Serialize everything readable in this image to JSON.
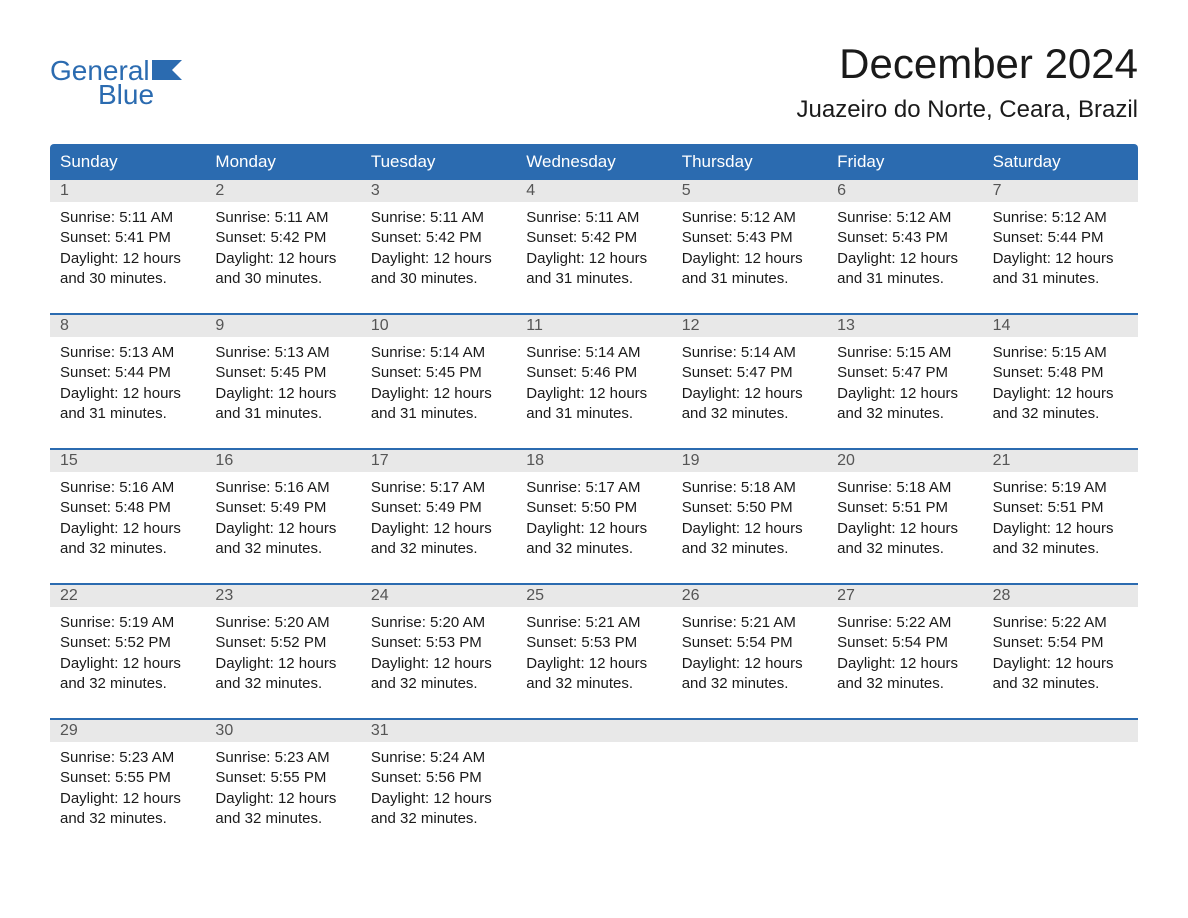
{
  "logo": {
    "text_top": "General",
    "text_bottom": "Blue",
    "color": "#2b6bb0",
    "flag_color": "#2b6bb0"
  },
  "header": {
    "title": "December 2024",
    "subtitle": "Juazeiro do Norte, Ceara, Brazil"
  },
  "colors": {
    "header_bg": "#2b6bb0",
    "header_text": "#ffffff",
    "day_number_bg": "#e8e8e8",
    "day_number_text": "#555555",
    "body_text": "#1a1a1a",
    "row_border": "#2b6bb0",
    "page_bg": "#ffffff"
  },
  "weekdays": [
    "Sunday",
    "Monday",
    "Tuesday",
    "Wednesday",
    "Thursday",
    "Friday",
    "Saturday"
  ],
  "weeks": [
    [
      {
        "day": "1",
        "sunrise": "Sunrise: 5:11 AM",
        "sunset": "Sunset: 5:41 PM",
        "daylight1": "Daylight: 12 hours",
        "daylight2": "and 30 minutes."
      },
      {
        "day": "2",
        "sunrise": "Sunrise: 5:11 AM",
        "sunset": "Sunset: 5:42 PM",
        "daylight1": "Daylight: 12 hours",
        "daylight2": "and 30 minutes."
      },
      {
        "day": "3",
        "sunrise": "Sunrise: 5:11 AM",
        "sunset": "Sunset: 5:42 PM",
        "daylight1": "Daylight: 12 hours",
        "daylight2": "and 30 minutes."
      },
      {
        "day": "4",
        "sunrise": "Sunrise: 5:11 AM",
        "sunset": "Sunset: 5:42 PM",
        "daylight1": "Daylight: 12 hours",
        "daylight2": "and 31 minutes."
      },
      {
        "day": "5",
        "sunrise": "Sunrise: 5:12 AM",
        "sunset": "Sunset: 5:43 PM",
        "daylight1": "Daylight: 12 hours",
        "daylight2": "and 31 minutes."
      },
      {
        "day": "6",
        "sunrise": "Sunrise: 5:12 AM",
        "sunset": "Sunset: 5:43 PM",
        "daylight1": "Daylight: 12 hours",
        "daylight2": "and 31 minutes."
      },
      {
        "day": "7",
        "sunrise": "Sunrise: 5:12 AM",
        "sunset": "Sunset: 5:44 PM",
        "daylight1": "Daylight: 12 hours",
        "daylight2": "and 31 minutes."
      }
    ],
    [
      {
        "day": "8",
        "sunrise": "Sunrise: 5:13 AM",
        "sunset": "Sunset: 5:44 PM",
        "daylight1": "Daylight: 12 hours",
        "daylight2": "and 31 minutes."
      },
      {
        "day": "9",
        "sunrise": "Sunrise: 5:13 AM",
        "sunset": "Sunset: 5:45 PM",
        "daylight1": "Daylight: 12 hours",
        "daylight2": "and 31 minutes."
      },
      {
        "day": "10",
        "sunrise": "Sunrise: 5:14 AM",
        "sunset": "Sunset: 5:45 PM",
        "daylight1": "Daylight: 12 hours",
        "daylight2": "and 31 minutes."
      },
      {
        "day": "11",
        "sunrise": "Sunrise: 5:14 AM",
        "sunset": "Sunset: 5:46 PM",
        "daylight1": "Daylight: 12 hours",
        "daylight2": "and 31 minutes."
      },
      {
        "day": "12",
        "sunrise": "Sunrise: 5:14 AM",
        "sunset": "Sunset: 5:47 PM",
        "daylight1": "Daylight: 12 hours",
        "daylight2": "and 32 minutes."
      },
      {
        "day": "13",
        "sunrise": "Sunrise: 5:15 AM",
        "sunset": "Sunset: 5:47 PM",
        "daylight1": "Daylight: 12 hours",
        "daylight2": "and 32 minutes."
      },
      {
        "day": "14",
        "sunrise": "Sunrise: 5:15 AM",
        "sunset": "Sunset: 5:48 PM",
        "daylight1": "Daylight: 12 hours",
        "daylight2": "and 32 minutes."
      }
    ],
    [
      {
        "day": "15",
        "sunrise": "Sunrise: 5:16 AM",
        "sunset": "Sunset: 5:48 PM",
        "daylight1": "Daylight: 12 hours",
        "daylight2": "and 32 minutes."
      },
      {
        "day": "16",
        "sunrise": "Sunrise: 5:16 AM",
        "sunset": "Sunset: 5:49 PM",
        "daylight1": "Daylight: 12 hours",
        "daylight2": "and 32 minutes."
      },
      {
        "day": "17",
        "sunrise": "Sunrise: 5:17 AM",
        "sunset": "Sunset: 5:49 PM",
        "daylight1": "Daylight: 12 hours",
        "daylight2": "and 32 minutes."
      },
      {
        "day": "18",
        "sunrise": "Sunrise: 5:17 AM",
        "sunset": "Sunset: 5:50 PM",
        "daylight1": "Daylight: 12 hours",
        "daylight2": "and 32 minutes."
      },
      {
        "day": "19",
        "sunrise": "Sunrise: 5:18 AM",
        "sunset": "Sunset: 5:50 PM",
        "daylight1": "Daylight: 12 hours",
        "daylight2": "and 32 minutes."
      },
      {
        "day": "20",
        "sunrise": "Sunrise: 5:18 AM",
        "sunset": "Sunset: 5:51 PM",
        "daylight1": "Daylight: 12 hours",
        "daylight2": "and 32 minutes."
      },
      {
        "day": "21",
        "sunrise": "Sunrise: 5:19 AM",
        "sunset": "Sunset: 5:51 PM",
        "daylight1": "Daylight: 12 hours",
        "daylight2": "and 32 minutes."
      }
    ],
    [
      {
        "day": "22",
        "sunrise": "Sunrise: 5:19 AM",
        "sunset": "Sunset: 5:52 PM",
        "daylight1": "Daylight: 12 hours",
        "daylight2": "and 32 minutes."
      },
      {
        "day": "23",
        "sunrise": "Sunrise: 5:20 AM",
        "sunset": "Sunset: 5:52 PM",
        "daylight1": "Daylight: 12 hours",
        "daylight2": "and 32 minutes."
      },
      {
        "day": "24",
        "sunrise": "Sunrise: 5:20 AM",
        "sunset": "Sunset: 5:53 PM",
        "daylight1": "Daylight: 12 hours",
        "daylight2": "and 32 minutes."
      },
      {
        "day": "25",
        "sunrise": "Sunrise: 5:21 AM",
        "sunset": "Sunset: 5:53 PM",
        "daylight1": "Daylight: 12 hours",
        "daylight2": "and 32 minutes."
      },
      {
        "day": "26",
        "sunrise": "Sunrise: 5:21 AM",
        "sunset": "Sunset: 5:54 PM",
        "daylight1": "Daylight: 12 hours",
        "daylight2": "and 32 minutes."
      },
      {
        "day": "27",
        "sunrise": "Sunrise: 5:22 AM",
        "sunset": "Sunset: 5:54 PM",
        "daylight1": "Daylight: 12 hours",
        "daylight2": "and 32 minutes."
      },
      {
        "day": "28",
        "sunrise": "Sunrise: 5:22 AM",
        "sunset": "Sunset: 5:54 PM",
        "daylight1": "Daylight: 12 hours",
        "daylight2": "and 32 minutes."
      }
    ],
    [
      {
        "day": "29",
        "sunrise": "Sunrise: 5:23 AM",
        "sunset": "Sunset: 5:55 PM",
        "daylight1": "Daylight: 12 hours",
        "daylight2": "and 32 minutes."
      },
      {
        "day": "30",
        "sunrise": "Sunrise: 5:23 AM",
        "sunset": "Sunset: 5:55 PM",
        "daylight1": "Daylight: 12 hours",
        "daylight2": "and 32 minutes."
      },
      {
        "day": "31",
        "sunrise": "Sunrise: 5:24 AM",
        "sunset": "Sunset: 5:56 PM",
        "daylight1": "Daylight: 12 hours",
        "daylight2": "and 32 minutes."
      },
      null,
      null,
      null,
      null
    ]
  ]
}
